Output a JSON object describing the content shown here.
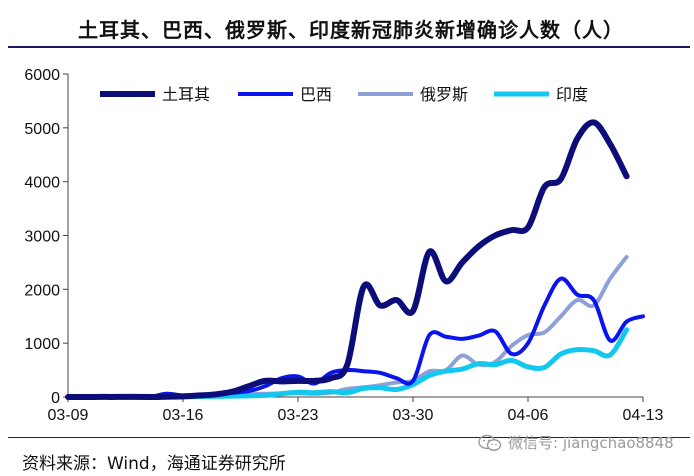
{
  "title": "土耳其、巴西、俄罗斯、印度新冠肺炎新增确诊人数（人）",
  "source": "资料来源：Wind，海通证券研究所",
  "watermark": "微信号: jiangchao8848",
  "chart_data": {
    "type": "line",
    "title": "土耳其、巴西、俄罗斯、印度新冠肺炎新增确诊人数（人）",
    "xlabel": "",
    "ylabel": "",
    "ylim": [
      0,
      6000
    ],
    "yticks": [
      0,
      1000,
      2000,
      3000,
      4000,
      5000,
      6000
    ],
    "xticks": [
      "03-09",
      "03-16",
      "03-23",
      "03-30",
      "04-06",
      "04-13"
    ],
    "grid": false,
    "legend_position": "top",
    "x": [
      "03-09",
      "03-10",
      "03-11",
      "03-12",
      "03-13",
      "03-14",
      "03-15",
      "03-16",
      "03-17",
      "03-18",
      "03-19",
      "03-20",
      "03-21",
      "03-22",
      "03-23",
      "03-24",
      "03-25",
      "03-26",
      "03-27",
      "03-28",
      "03-29",
      "03-30",
      "03-31",
      "04-01",
      "04-02",
      "04-03",
      "04-04",
      "04-05",
      "04-06",
      "04-07",
      "04-08",
      "04-09",
      "04-10",
      "04-11",
      "04-12",
      "04-13"
    ],
    "series": [
      {
        "name": "土耳其",
        "color": "#0d0d7a",
        "width": 6,
        "values": [
          0,
          0,
          1,
          1,
          2,
          0,
          5,
          12,
          29,
          50,
          100,
          200,
          300,
          290,
          300,
          300,
          350,
          600,
          2050,
          1700,
          1800,
          1600,
          2700,
          2150,
          2500,
          2800,
          3000,
          3100,
          3150,
          3900,
          4050,
          4800,
          5100,
          4700,
          4100,
          null
        ]
      },
      {
        "name": "巴西",
        "color": "#0a14ee",
        "width": 4,
        "values": [
          0,
          5,
          10,
          5,
          20,
          5,
          60,
          30,
          40,
          60,
          80,
          110,
          200,
          350,
          380,
          250,
          450,
          500,
          480,
          450,
          350,
          300,
          1150,
          1120,
          1080,
          1140,
          1220,
          800,
          1000,
          1700,
          2200,
          1900,
          1800,
          1050,
          1400,
          1500
        ]
      },
      {
        "name": "俄罗斯",
        "color": "#8fa0d6",
        "width": 4,
        "values": [
          0,
          0,
          1,
          1,
          2,
          2,
          3,
          3,
          10,
          20,
          30,
          50,
          60,
          70,
          70,
          60,
          80,
          150,
          180,
          220,
          270,
          300,
          480,
          500,
          770,
          600,
          650,
          950,
          1150,
          1200,
          1500,
          1800,
          1700,
          2200,
          2600,
          null
        ]
      },
      {
        "name": "印度",
        "color": "#12c8ee",
        "width": 5,
        "values": [
          0,
          1,
          2,
          2,
          3,
          4,
          5,
          6,
          8,
          12,
          16,
          20,
          30,
          60,
          90,
          80,
          100,
          80,
          160,
          170,
          140,
          230,
          400,
          480,
          520,
          620,
          600,
          680,
          560,
          550,
          800,
          880,
          860,
          780,
          1250,
          null
        ]
      }
    ]
  }
}
